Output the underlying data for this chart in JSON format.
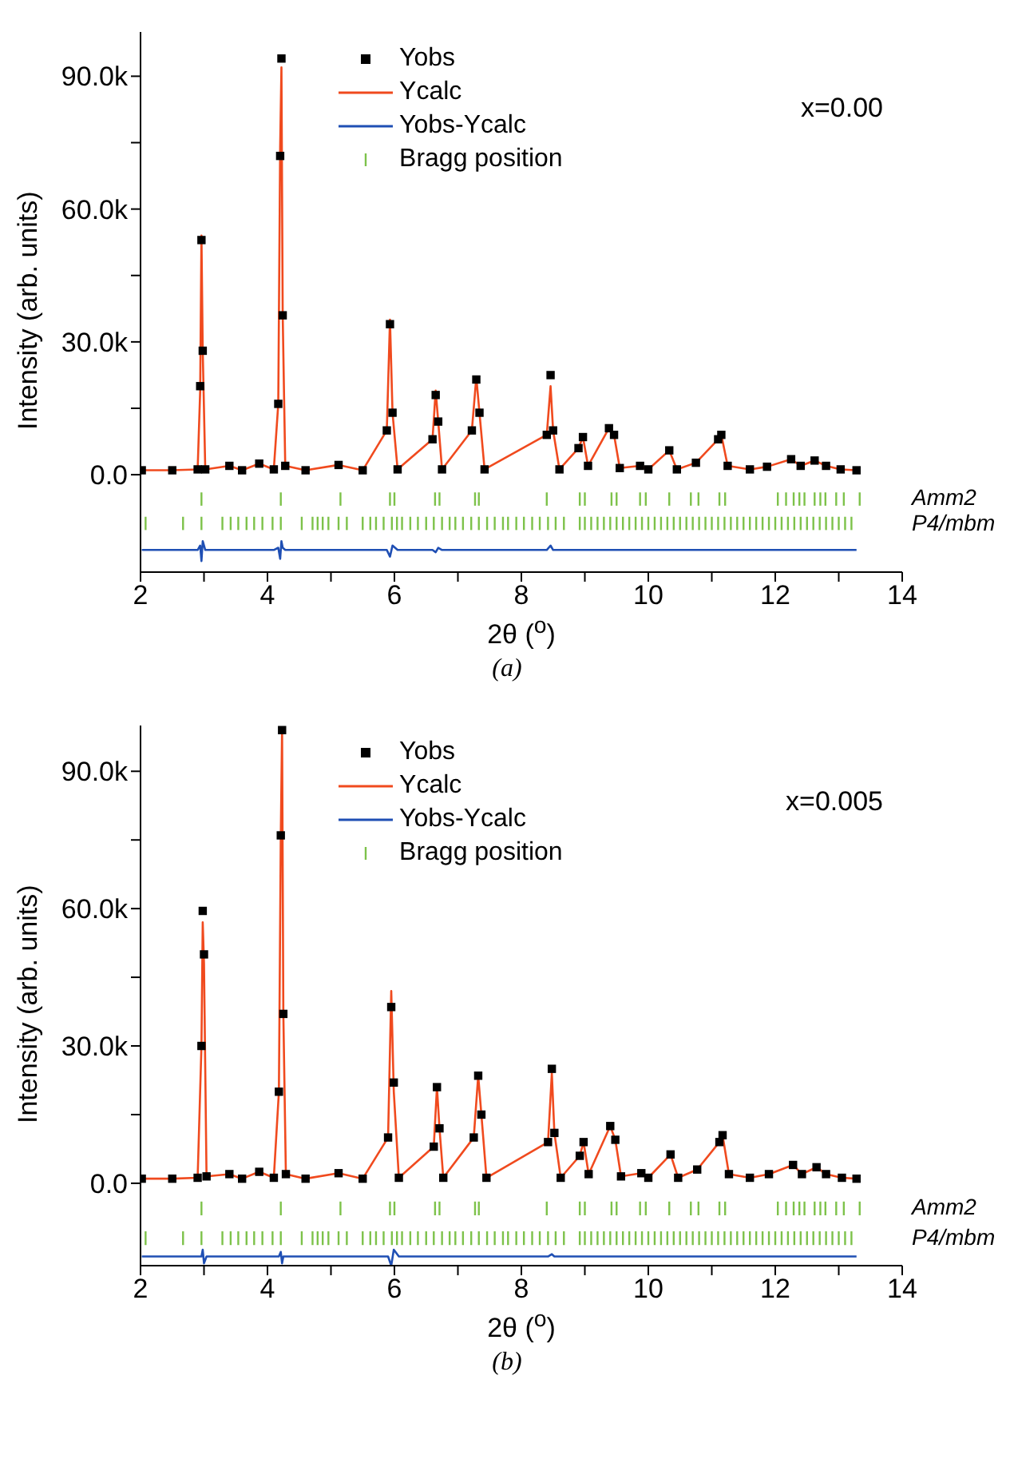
{
  "chart_data": [
    {
      "type": "scatter",
      "xlabel": "2θ ($^{o}$)",
      "ylabel": "Intensity (arb. units)",
      "legend": "top",
      "xlim": [
        2,
        14
      ],
      "xticks": [
        2,
        {
          "value": 3,
          "label": null
        },
        4,
        {
          "value": 5,
          "label": null
        },
        6,
        {
          "value": 7,
          "label": null
        },
        8,
        {
          "value": 9,
          "label": null
        },
        10,
        {
          "value": 11,
          "label": null
        },
        12,
        {
          "value": 13,
          "label": null
        },
        14
      ],
      "ylim": [
        -22000,
        100000
      ],
      "yticks": [
        {
          "value": 0,
          "label": "0.0"
        },
        {
          "value": 15000,
          "label": null
        },
        {
          "value": 30000,
          "label": "30.0k"
        },
        {
          "value": 45000,
          "label": null
        },
        {
          "value": 60000,
          "label": "60.0k"
        },
        {
          "value": 75000,
          "label": null
        },
        {
          "value": 90000,
          "label": "90.0k"
        }
      ],
      "annotations": [
        "x=0.00",
        "(a)",
        "Amm2",
        "P4/mbm"
      ],
      "x": [
        2.02,
        2.5,
        2.9,
        2.94,
        2.96,
        2.98,
        3.02,
        3.4,
        3.6,
        3.87,
        4.1,
        4.17,
        4.2,
        4.22,
        4.24,
        4.28,
        4.6,
        5.12,
        5.5,
        5.88,
        5.93,
        5.97,
        6.05,
        6.6,
        6.65,
        6.69,
        6.75,
        7.22,
        7.29,
        7.34,
        7.42,
        8.4,
        8.46,
        8.5,
        8.6,
        8.9,
        8.97,
        9.05,
        9.38,
        9.46,
        9.55,
        9.87,
        10.0,
        10.33,
        10.45,
        10.75,
        11.1,
        11.15,
        11.25,
        11.6,
        11.87,
        12.25,
        12.4,
        12.62,
        12.8,
        13.03,
        13.28
      ],
      "series": [
        {
          "name": "Yobs",
          "marker": "square",
          "color": "#000000",
          "values": [
            1000,
            1000,
            1200,
            20000,
            53000,
            28000,
            1200,
            2000,
            1000,
            2500,
            1200,
            16000,
            72000,
            94000,
            36000,
            2000,
            1000,
            2200,
            1000,
            10000,
            34000,
            14000,
            1200,
            8000,
            18000,
            12000,
            1200,
            10000,
            21500,
            14000,
            1200,
            9000,
            22500,
            10000,
            1200,
            6000,
            8500,
            2000,
            10500,
            9000,
            1500,
            2000,
            1200,
            5500,
            1200,
            2700,
            8000,
            9000,
            2000,
            1200,
            1800,
            3500,
            2000,
            3200,
            2000,
            1200,
            1000
          ]
        },
        {
          "name": "Ycalc",
          "type": "line",
          "color": "#f04a1e",
          "values": [
            1000,
            1000,
            1200,
            19000,
            54000,
            28000,
            1200,
            2000,
            1000,
            2500,
            1200,
            16000,
            74000,
            92000,
            36000,
            2000,
            1000,
            2200,
            1000,
            10000,
            35000,
            14000,
            1200,
            8000,
            19000,
            12000,
            1200,
            10000,
            22000,
            14000,
            1200,
            9000,
            20000,
            10000,
            1200,
            6000,
            8500,
            2000,
            10500,
            9000,
            1500,
            2000,
            1200,
            5500,
            1200,
            2700,
            8000,
            9000,
            2000,
            1200,
            1800,
            3500,
            2000,
            3200,
            2000,
            1200,
            1000
          ]
        },
        {
          "name": "Yobs-Ycalc",
          "type": "line",
          "color": "#1f4fb4",
          "values": [
            -17000,
            -17000,
            -17000,
            -16000,
            -19500,
            -15000,
            -17000,
            -17000,
            -17000,
            -17000,
            -17000,
            -16500,
            -19000,
            -15000,
            -16500,
            -17000,
            -17000,
            -17000,
            -17000,
            -17000,
            -18500,
            -16000,
            -17000,
            -17000,
            -17500,
            -16500,
            -17000,
            -17000,
            -17000,
            -17000,
            -17000,
            -17000,
            -16000,
            -17000,
            -17000,
            -17000,
            -17000,
            -17000,
            -17000,
            -17000,
            -17000,
            -17000,
            -17000,
            -17000,
            -17000,
            -17000,
            -17000,
            -17000,
            -17000,
            -17000,
            -17000,
            -17000,
            -17000,
            -17000,
            -17000,
            -17000,
            -17000
          ]
        },
        {
          "name": "Bragg position",
          "type": "bar",
          "color": "#7dc24a",
          "x": [
            2.96,
            4.21,
            5.15,
            5.93,
            6.0,
            6.64,
            6.71,
            7.27,
            7.33,
            8.4,
            8.92,
            9.0,
            9.42,
            9.5,
            9.87,
            9.96,
            10.33,
            10.67,
            10.79,
            11.12,
            11.21,
            12.04,
            12.17,
            12.29,
            12.38,
            12.46,
            12.62,
            12.71,
            12.79,
            12.96,
            13.08,
            13.33
          ],
          "base": [
            -7000,
            -7000,
            -7000,
            -7000,
            -7000,
            -7000,
            -7000,
            -7000,
            -7000,
            -7000,
            -7000,
            -7000,
            -7000,
            -7000,
            -7000,
            -7000,
            -7000,
            -7000,
            -7000,
            -7000,
            -7000,
            -7000,
            -7000,
            -7000,
            -7000,
            -7000,
            -7000,
            -7000,
            -7000,
            -7000,
            -7000,
            -7000
          ],
          "values": [
            3000,
            3000,
            3000,
            3000,
            3000,
            3000,
            3000,
            3000,
            3000,
            3000,
            3000,
            3000,
            3000,
            3000,
            3000,
            3000,
            3000,
            3000,
            3000,
            3000,
            3000,
            3000,
            3000,
            3000,
            3000,
            3000,
            3000,
            3000,
            3000,
            3000,
            3000,
            3000
          ]
        },
        {
          "type": "bar",
          "color": "#7dc24a",
          "x": [
            2.08,
            2.67,
            2.96,
            3.29,
            3.42,
            3.54,
            3.67,
            3.79,
            3.92,
            4.08,
            4.21,
            4.54,
            4.71,
            4.79,
            4.87,
            4.96,
            5.12,
            5.25,
            5.5,
            5.62,
            5.71,
            5.83,
            5.96,
            6.04,
            6.12,
            6.25,
            6.37,
            6.5,
            6.62,
            6.75,
            6.87,
            6.96,
            7.08,
            7.21,
            7.33,
            7.46,
            7.58,
            7.71,
            7.79,
            7.92,
            8.04,
            8.17,
            8.29,
            8.42,
            8.54,
            8.67,
            8.92,
            9.0,
            9.1,
            9.2,
            9.3,
            9.4,
            9.5,
            9.6,
            9.7,
            9.8,
            9.9,
            10.0,
            10.1,
            10.2,
            10.3,
            10.4,
            10.5,
            10.6,
            10.7,
            10.8,
            10.9,
            11.0,
            11.1,
            11.2,
            11.3,
            11.4,
            11.5,
            11.6,
            11.7,
            11.8,
            11.9,
            12.0,
            12.1,
            12.2,
            12.3,
            12.4,
            12.5,
            12.6,
            12.7,
            12.8,
            12.9,
            13.0,
            13.1,
            13.2
          ],
          "base": [
            -12500,
            -12500,
            -12500,
            -12500,
            -12500,
            -12500,
            -12500,
            -12500,
            -12500,
            -12500,
            -12500,
            -12500,
            -12500,
            -12500,
            -12500,
            -12500,
            -12500,
            -12500,
            -12500,
            -12500,
            -12500,
            -12500,
            -12500,
            -12500,
            -12500,
            -12500,
            -12500,
            -12500,
            -12500,
            -12500,
            -12500,
            -12500,
            -12500,
            -12500,
            -12500,
            -12500,
            -12500,
            -12500,
            -12500,
            -12500,
            -12500,
            -12500,
            -12500,
            -12500,
            -12500,
            -12500,
            -12500,
            -12500,
            -12500,
            -12500,
            -12500,
            -12500,
            -12500,
            -12500,
            -12500,
            -12500,
            -12500,
            -12500,
            -12500,
            -12500,
            -12500,
            -12500,
            -12500,
            -12500,
            -12500,
            -12500,
            -12500,
            -12500,
            -12500,
            -12500,
            -12500,
            -12500,
            -12500,
            -12500,
            -12500,
            -12500,
            -12500,
            -12500,
            -12500,
            -12500,
            -12500,
            -12500,
            -12500,
            -12500,
            -12500,
            -12500,
            -12500,
            -12500,
            -12500,
            -12500
          ],
          "values": [
            3000,
            3000,
            3000,
            3000,
            3000,
            3000,
            3000,
            3000,
            3000,
            3000,
            3000,
            3000,
            3000,
            3000,
            3000,
            3000,
            3000,
            3000,
            3000,
            3000,
            3000,
            3000,
            3000,
            3000,
            3000,
            3000,
            3000,
            3000,
            3000,
            3000,
            3000,
            3000,
            3000,
            3000,
            3000,
            3000,
            3000,
            3000,
            3000,
            3000,
            3000,
            3000,
            3000,
            3000,
            3000,
            3000,
            3000,
            3000,
            3000,
            3000,
            3000,
            3000,
            3000,
            3000,
            3000,
            3000,
            3000,
            3000,
            3000,
            3000,
            3000,
            3000,
            3000,
            3000,
            3000,
            3000,
            3000,
            3000,
            3000,
            3000,
            3000,
            3000,
            3000,
            3000,
            3000,
            3000,
            3000,
            3000,
            3000,
            3000,
            3000,
            3000,
            3000,
            3000,
            3000,
            3000,
            3000,
            3000,
            3000,
            3000
          ]
        }
      ]
    },
    {
      "type": "scatter",
      "xlabel": "2θ ($^{o}$)",
      "ylabel": "Intensity (arb. units)",
      "legend": "top",
      "xlim": [
        2,
        14
      ],
      "xticks": [
        2,
        {
          "value": 3,
          "label": null
        },
        4,
        {
          "value": 5,
          "label": null
        },
        6,
        {
          "value": 7,
          "label": null
        },
        8,
        {
          "value": 9,
          "label": null
        },
        10,
        {
          "value": 11,
          "label": null
        },
        12,
        {
          "value": 13,
          "label": null
        },
        14
      ],
      "ylim": [
        -18000,
        100000
      ],
      "yticks": [
        {
          "value": 0,
          "label": "0.0"
        },
        {
          "value": 15000,
          "label": null
        },
        {
          "value": 30000,
          "label": "30.0k"
        },
        {
          "value": 45000,
          "label": null
        },
        {
          "value": 60000,
          "label": "60.0k"
        },
        {
          "value": 75000,
          "label": null
        },
        {
          "value": 90000,
          "label": "90.0k"
        }
      ],
      "annotations": [
        "x=0.005",
        "(b)",
        "Amm2",
        "P4/mbm"
      ],
      "x": [
        2.02,
        2.5,
        2.9,
        2.96,
        2.98,
        3.0,
        3.04,
        3.4,
        3.6,
        3.87,
        4.1,
        4.18,
        4.21,
        4.23,
        4.25,
        4.29,
        4.6,
        5.12,
        5.5,
        5.9,
        5.95,
        5.99,
        6.07,
        6.62,
        6.67,
        6.71,
        6.77,
        7.25,
        7.32,
        7.37,
        7.45,
        8.42,
        8.48,
        8.52,
        8.62,
        8.92,
        8.98,
        9.06,
        9.4,
        9.48,
        9.57,
        9.89,
        10.0,
        10.35,
        10.47,
        10.77,
        11.12,
        11.17,
        11.27,
        11.6,
        11.9,
        12.28,
        12.42,
        12.65,
        12.8,
        13.05,
        13.28
      ],
      "series": [
        {
          "name": "Yobs",
          "marker": "square",
          "color": "#000000",
          "values": [
            1000,
            1000,
            1200,
            30000,
            59500,
            50000,
            1500,
            2000,
            1000,
            2500,
            1200,
            20000,
            76000,
            99000,
            37000,
            2000,
            1000,
            2200,
            1000,
            10000,
            38500,
            22000,
            1200,
            8000,
            21000,
            12000,
            1200,
            10000,
            23500,
            15000,
            1200,
            9000,
            25000,
            11000,
            1200,
            6000,
            9000,
            2000,
            12500,
            9500,
            1500,
            2200,
            1200,
            6300,
            1200,
            3000,
            9000,
            10500,
            2000,
            1200,
            2000,
            4000,
            2000,
            3500,
            2000,
            1200,
            1000
          ]
        },
        {
          "name": "Ycalc",
          "type": "line",
          "color": "#f04a1e",
          "values": [
            1000,
            1000,
            1200,
            30000,
            57000,
            48000,
            1500,
            2000,
            1000,
            2500,
            1200,
            20000,
            76000,
            99000,
            37000,
            2000,
            1000,
            2200,
            1000,
            10000,
            42000,
            20000,
            1200,
            8000,
            21000,
            12000,
            1200,
            10000,
            23500,
            15000,
            1200,
            9000,
            24000,
            11000,
            1200,
            6000,
            9000,
            2000,
            12500,
            9500,
            1500,
            2200,
            1200,
            6300,
            1200,
            3000,
            9000,
            10500,
            2000,
            1200,
            2000,
            4000,
            2000,
            3500,
            2000,
            1200,
            1000
          ]
        },
        {
          "name": "Yobs-Ycalc",
          "type": "line",
          "color": "#1f4fb4",
          "values": [
            -16000,
            -16000,
            -16000,
            -16000,
            -14500,
            -17500,
            -16000,
            -16000,
            -16000,
            -16000,
            -16000,
            -16000,
            -15000,
            -17500,
            -16000,
            -16000,
            -16000,
            -16000,
            -16000,
            -16000,
            -18000,
            -14500,
            -16000,
            -16000,
            -16000,
            -16000,
            -16000,
            -16000,
            -16000,
            -16000,
            -16000,
            -16000,
            -15500,
            -16000,
            -16000,
            -16000,
            -16000,
            -16000,
            -16000,
            -16000,
            -16000,
            -16000,
            -16000,
            -16000,
            -16000,
            -16000,
            -16000,
            -16000,
            -16000,
            -16000,
            -16000,
            -16000,
            -16000,
            -16000,
            -16000,
            -16000,
            -16000
          ]
        },
        {
          "name": "Bragg position",
          "type": "bar",
          "color": "#7dc24a",
          "x": [
            2.96,
            4.21,
            5.15,
            5.93,
            6.0,
            6.64,
            6.71,
            7.27,
            7.33,
            8.4,
            8.92,
            9.0,
            9.42,
            9.5,
            9.87,
            9.96,
            10.33,
            10.67,
            10.79,
            11.12,
            11.21,
            12.04,
            12.17,
            12.29,
            12.38,
            12.46,
            12.62,
            12.71,
            12.79,
            12.96,
            13.08,
            13.33
          ],
          "base": [
            -7000,
            -7000,
            -7000,
            -7000,
            -7000,
            -7000,
            -7000,
            -7000,
            -7000,
            -7000,
            -7000,
            -7000,
            -7000,
            -7000,
            -7000,
            -7000,
            -7000,
            -7000,
            -7000,
            -7000,
            -7000,
            -7000,
            -7000,
            -7000,
            -7000,
            -7000,
            -7000,
            -7000,
            -7000,
            -7000,
            -7000,
            -7000
          ],
          "values": [
            3000,
            3000,
            3000,
            3000,
            3000,
            3000,
            3000,
            3000,
            3000,
            3000,
            3000,
            3000,
            3000,
            3000,
            3000,
            3000,
            3000,
            3000,
            3000,
            3000,
            3000,
            3000,
            3000,
            3000,
            3000,
            3000,
            3000,
            3000,
            3000,
            3000,
            3000,
            3000
          ]
        },
        {
          "type": "bar",
          "color": "#7dc24a",
          "x": [
            2.08,
            2.67,
            2.96,
            3.29,
            3.42,
            3.54,
            3.67,
            3.79,
            3.92,
            4.08,
            4.21,
            4.54,
            4.71,
            4.79,
            4.87,
            4.96,
            5.12,
            5.25,
            5.5,
            5.62,
            5.71,
            5.83,
            5.96,
            6.04,
            6.12,
            6.25,
            6.37,
            6.5,
            6.62,
            6.75,
            6.87,
            6.96,
            7.08,
            7.21,
            7.33,
            7.46,
            7.58,
            7.71,
            7.79,
            7.92,
            8.04,
            8.17,
            8.29,
            8.42,
            8.54,
            8.67,
            8.92,
            9.0,
            9.1,
            9.2,
            9.3,
            9.4,
            9.5,
            9.6,
            9.7,
            9.8,
            9.9,
            10.0,
            10.1,
            10.2,
            10.3,
            10.4,
            10.5,
            10.6,
            10.7,
            10.8,
            10.9,
            11.0,
            11.1,
            11.2,
            11.3,
            11.4,
            11.5,
            11.6,
            11.7,
            11.8,
            11.9,
            12.0,
            12.1,
            12.2,
            12.3,
            12.4,
            12.5,
            12.6,
            12.7,
            12.8,
            12.9,
            13.0,
            13.1,
            13.2
          ],
          "base": [
            -13500,
            -13500,
            -13500,
            -13500,
            -13500,
            -13500,
            -13500,
            -13500,
            -13500,
            -13500,
            -13500,
            -13500,
            -13500,
            -13500,
            -13500,
            -13500,
            -13500,
            -13500,
            -13500,
            -13500,
            -13500,
            -13500,
            -13500,
            -13500,
            -13500,
            -13500,
            -13500,
            -13500,
            -13500,
            -13500,
            -13500,
            -13500,
            -13500,
            -13500,
            -13500,
            -13500,
            -13500,
            -13500,
            -13500,
            -13500,
            -13500,
            -13500,
            -13500,
            -13500,
            -13500,
            -13500,
            -13500,
            -13500,
            -13500,
            -13500,
            -13500,
            -13500,
            -13500,
            -13500,
            -13500,
            -13500,
            -13500,
            -13500,
            -13500,
            -13500,
            -13500,
            -13500,
            -13500,
            -13500,
            -13500,
            -13500,
            -13500,
            -13500,
            -13500,
            -13500,
            -13500,
            -13500,
            -13500,
            -13500,
            -13500,
            -13500,
            -13500,
            -13500,
            -13500,
            -13500,
            -13500,
            -13500,
            -13500,
            -13500,
            -13500,
            -13500,
            -13500,
            -13500,
            -13500,
            -13500
          ],
          "values": [
            3000,
            3000,
            3000,
            3000,
            3000,
            3000,
            3000,
            3000,
            3000,
            3000,
            3000,
            3000,
            3000,
            3000,
            3000,
            3000,
            3000,
            3000,
            3000,
            3000,
            3000,
            3000,
            3000,
            3000,
            3000,
            3000,
            3000,
            3000,
            3000,
            3000,
            3000,
            3000,
            3000,
            3000,
            3000,
            3000,
            3000,
            3000,
            3000,
            3000,
            3000,
            3000,
            3000,
            3000,
            3000,
            3000,
            3000,
            3000,
            3000,
            3000,
            3000,
            3000,
            3000,
            3000,
            3000,
            3000,
            3000,
            3000,
            3000,
            3000,
            3000,
            3000,
            3000,
            3000,
            3000,
            3000,
            3000,
            3000,
            3000,
            3000,
            3000,
            3000,
            3000,
            3000,
            3000,
            3000,
            3000,
            3000,
            3000,
            3000,
            3000,
            3000,
            3000,
            3000,
            3000,
            3000,
            3000,
            3000,
            3000,
            3000
          ]
        }
      ]
    }
  ]
}
